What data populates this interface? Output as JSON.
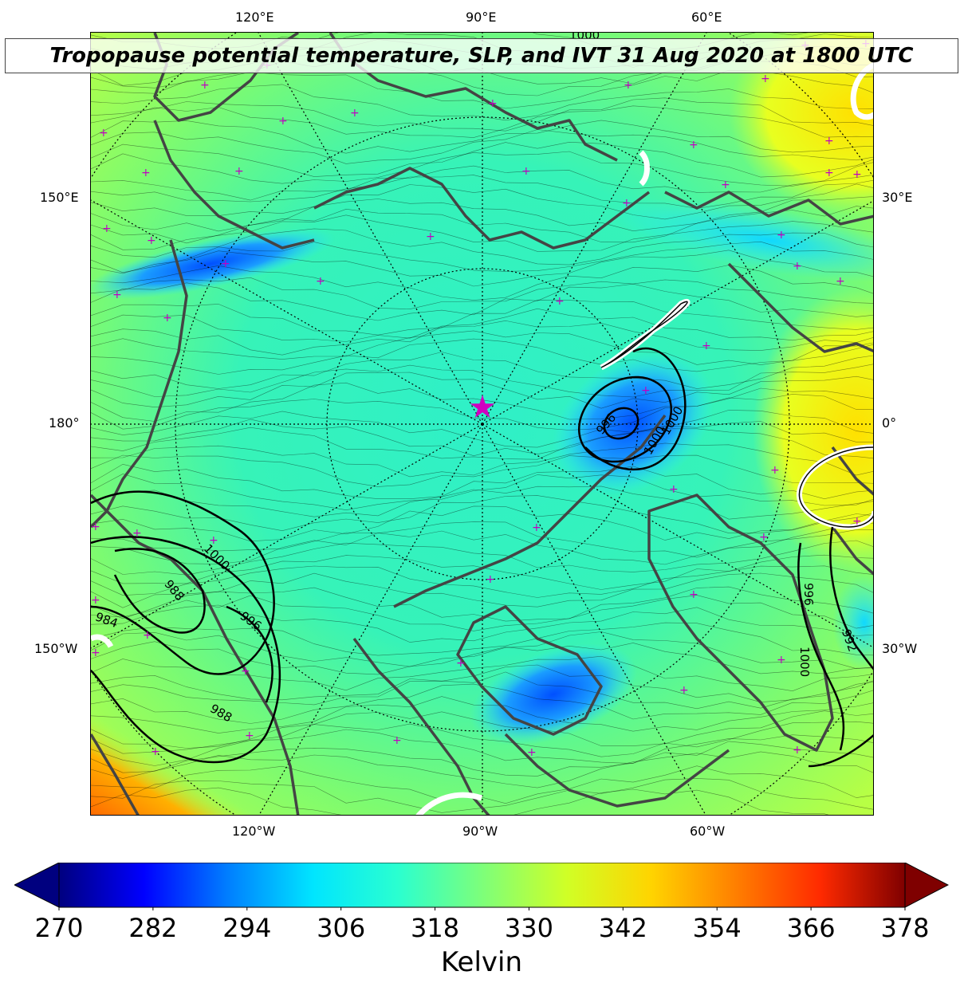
{
  "title": "Tropopause potential temperature, SLP, and IVT 31 Aug 2020 at 1800 UTC",
  "map": {
    "top_labels": [
      "120°E",
      "90°E",
      "60°E"
    ],
    "bottom_labels": [
      "120°W",
      "90°W",
      "60°W"
    ],
    "left_labels": [
      "150°E",
      "180°",
      "150°W"
    ],
    "right_labels": [
      "30°E",
      "0°",
      "30°W"
    ],
    "slp_contour_labels": [
      "996",
      "1000",
      "1000",
      "1000",
      "988",
      "984",
      "996",
      "988",
      "996",
      "992",
      "1000",
      "1000"
    ]
  },
  "colorbar": {
    "unit_label": "Kelvin",
    "ticks": [
      "270",
      "282",
      "294",
      "306",
      "318",
      "330",
      "342",
      "354",
      "366",
      "378"
    ],
    "colors": [
      "#00007f",
      "#0000ff",
      "#007fff",
      "#00e5ff",
      "#2affd0",
      "#7dff7a",
      "#d0ff26",
      "#ffd400",
      "#ff7f00",
      "#ff2a00",
      "#7f0000"
    ]
  }
}
